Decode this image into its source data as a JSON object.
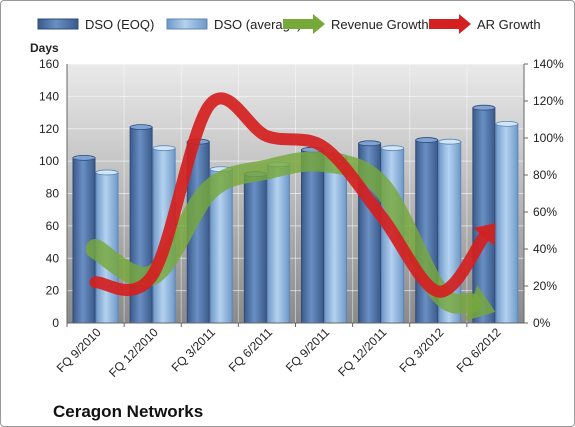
{
  "chart_data": {
    "type": "bar",
    "title": "",
    "company": "Ceragon Networks",
    "ylabel_left": "Days",
    "ylim_left": [
      0,
      160
    ],
    "yticks_left": [
      "0",
      "20",
      "40",
      "60",
      "80",
      "100",
      "120",
      "140",
      "160"
    ],
    "ylim_right": [
      0,
      140
    ],
    "yticks_right": [
      "0%",
      "20%",
      "40%",
      "60%",
      "80%",
      "100%",
      "120%",
      "140%"
    ],
    "categories": [
      "FQ 9/2010",
      "FQ 12/2010",
      "FQ 3/2011",
      "FQ 6/2011",
      "FQ 9/2011",
      "FQ 12/2011",
      "FQ 3/2012",
      "FQ 6/2012"
    ],
    "bar_series": [
      {
        "name": "DSO (EOQ)",
        "values": [
          102,
          121,
          112,
          92,
          107,
          111,
          113,
          133
        ],
        "color": "#4a6fa5"
      },
      {
        "name": "DSO (average)",
        "values": [
          93,
          108,
          95,
          98,
          103,
          108,
          112,
          123
        ],
        "color": "#8fb4de"
      }
    ],
    "line_series": [
      {
        "name": "Revenue Growth",
        "axis": "right",
        "values": [
          40,
          26,
          72,
          83,
          87,
          74,
          17,
          6
        ],
        "color": "#76a83a"
      },
      {
        "name": "AR Growth",
        "axis": "right",
        "values": [
          22,
          26,
          118,
          101,
          95,
          58,
          17,
          54
        ],
        "color": "#d42020"
      }
    ],
    "legend_position": "top",
    "grid": true
  }
}
